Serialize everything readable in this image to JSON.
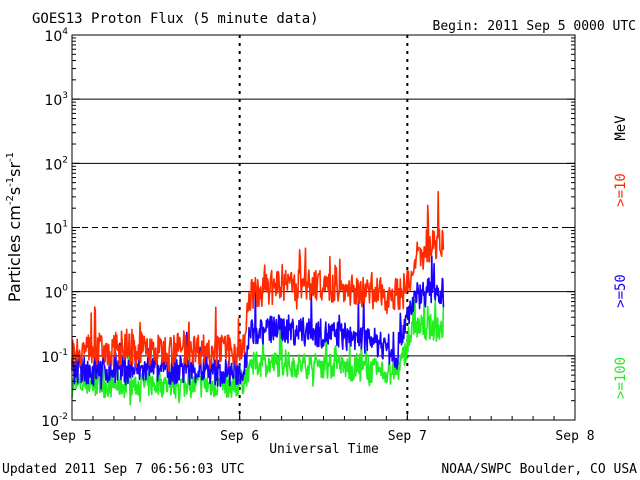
{
  "header": {
    "title": "GOES13 Proton Flux (5 minute data)",
    "begin": "Begin: 2011 Sep 5 0000 UTC"
  },
  "footer": {
    "updated": "Updated 2011 Sep  7 06:56:03 UTC",
    "credit": "NOAA/SWPC Boulder, CO USA"
  },
  "chart_data": {
    "type": "line",
    "title": "GOES13 Proton Flux (5 minute data)",
    "xlabel": "Universal Time",
    "ylabel": "Particles cm⁻²s⁻¹sr⁻¹",
    "y_scale": "log",
    "ylim": [
      0.01,
      10000
    ],
    "xlim": [
      0,
      72
    ],
    "x_unit": "hours since 2011 Sep 5 0000 UTC",
    "x_ticks": [
      {
        "value": 0,
        "label": "Sep 5"
      },
      {
        "value": 24,
        "label": "Sep 6"
      },
      {
        "value": 48,
        "label": "Sep 7"
      },
      {
        "value": 72,
        "label": "Sep 8"
      }
    ],
    "y_ticks": [
      {
        "value": 0.01,
        "base": "10",
        "exp": "-2"
      },
      {
        "value": 0.1,
        "base": "10",
        "exp": "-1"
      },
      {
        "value": 1,
        "base": "10",
        "exp": "0"
      },
      {
        "value": 10,
        "base": "10",
        "exp": "1"
      },
      {
        "value": 100,
        "base": "10",
        "exp": "2"
      },
      {
        "value": 1000,
        "base": "10",
        "exp": "3"
      },
      {
        "value": 10000,
        "base": "10",
        "exp": "4"
      }
    ],
    "grid": "horizontal lines at each decade; dashed line at 10; dashed vertical markers at day boundaries",
    "legend_unit": "MeV",
    "series": [
      {
        "name": ">=10",
        "color": "#ff2a00",
        "x": [
          0,
          3,
          6,
          9,
          12,
          15,
          18,
          21,
          23.5,
          24.5,
          25.5,
          27,
          30,
          33,
          36,
          39,
          42,
          45,
          47,
          48,
          49,
          50,
          51,
          52,
          53.2
        ],
        "y": [
          0.12,
          0.13,
          0.12,
          0.13,
          0.12,
          0.13,
          0.13,
          0.12,
          0.12,
          0.13,
          0.9,
          1.0,
          1.2,
          1.3,
          1.2,
          1.1,
          1.0,
          0.9,
          0.95,
          1.2,
          2.0,
          3.5,
          5.0,
          5.8,
          6.0
        ],
        "noise": 0.5
      },
      {
        "name": ">=50",
        "color": "#1a00ff",
        "x": [
          0,
          3,
          6,
          9,
          12,
          15,
          18,
          21,
          23.5,
          24.5,
          25.5,
          27,
          30,
          33,
          36,
          39,
          42,
          45,
          46.5,
          47.5,
          48.5,
          49.5,
          51,
          52,
          53.2
        ],
        "y": [
          0.055,
          0.06,
          0.06,
          0.06,
          0.06,
          0.06,
          0.06,
          0.055,
          0.055,
          0.06,
          0.22,
          0.25,
          0.27,
          0.24,
          0.22,
          0.2,
          0.18,
          0.14,
          0.1,
          0.3,
          0.6,
          0.9,
          1.0,
          1.1,
          0.95
        ],
        "noise": 0.45
      },
      {
        "name": ">=100",
        "color": "#22ee22",
        "x": [
          0,
          3,
          6,
          9,
          12,
          15,
          18,
          21,
          23.5,
          24.5,
          25.5,
          27,
          30,
          33,
          36,
          39,
          42,
          45,
          46.5,
          47.5,
          48.5,
          49.5,
          51,
          52,
          53.2
        ],
        "y": [
          0.035,
          0.036,
          0.035,
          0.035,
          0.036,
          0.035,
          0.035,
          0.035,
          0.035,
          0.04,
          0.07,
          0.075,
          0.075,
          0.07,
          0.07,
          0.065,
          0.06,
          0.055,
          0.055,
          0.1,
          0.22,
          0.28,
          0.28,
          0.27,
          0.26
        ],
        "noise": 0.4
      }
    ]
  }
}
